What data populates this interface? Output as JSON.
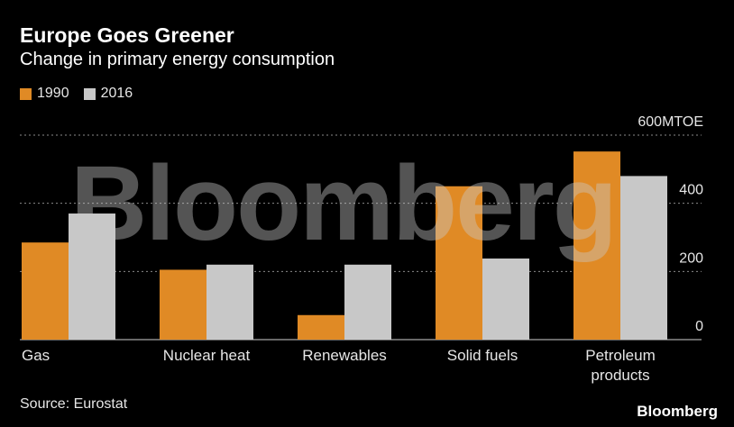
{
  "title": "Europe Goes Greener",
  "subtitle": "Change in primary energy consumption",
  "source": "Source: Eurostat",
  "brand": "Bloomberg",
  "watermark": "Bloomberg",
  "colors": {
    "series_1990": "#e08a25",
    "series_2016": "#c8c8c8",
    "grid": "#8a8a8a",
    "background": "#000000"
  },
  "chart_data": {
    "type": "bar",
    "title": "Europe Goes Greener",
    "subtitle": "Change in primary energy consumption",
    "categories": [
      [
        "Gas"
      ],
      [
        "Nuclear heat"
      ],
      [
        "Renewables"
      ],
      [
        "Solid fuels"
      ],
      [
        "Petroleum",
        "products"
      ]
    ],
    "series": [
      {
        "name": "1990",
        "color": "#e08a25",
        "values": [
          285,
          205,
          72,
          450,
          552
        ]
      },
      {
        "name": "2016",
        "color": "#c8c8c8",
        "values": [
          370,
          220,
          220,
          238,
          480
        ]
      }
    ],
    "ylim": [
      0,
      600
    ],
    "yticks": [
      0,
      200,
      400,
      600
    ],
    "ytick_labels": [
      "0",
      "200",
      "400",
      "600MTOE"
    ],
    "ylabel": "",
    "xlabel": "",
    "grid": true,
    "legend": "top-left"
  }
}
